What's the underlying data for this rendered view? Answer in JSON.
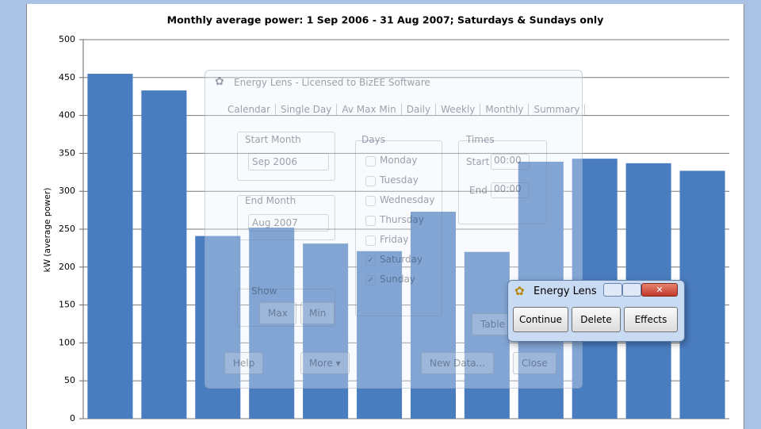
{
  "chart_data": {
    "type": "bar",
    "title": "Monthly average power: 1 Sep 2006 - 31 Aug 2007; Saturdays & Sundays only",
    "y_label": "kW (average power)",
    "categories": [
      null,
      null,
      null,
      null,
      null,
      null,
      null,
      null,
      null,
      null,
      null,
      null
    ],
    "values": [
      455,
      433,
      241,
      252,
      231,
      221,
      273,
      220,
      339,
      343,
      337,
      327
    ],
    "color": "#4a7dc0",
    "ylim": [
      0,
      500
    ],
    "yticks": [
      0,
      50,
      100,
      150,
      200,
      250,
      300,
      350,
      400,
      450,
      500
    ],
    "grid": true
  },
  "faded_dialog": {
    "title": "Energy Lens - Licensed to BizEE Software",
    "tabs": [
      "Calendar",
      "Single Day",
      "Av Max Min",
      "Daily",
      "Weekly",
      "Monthly",
      "Summary"
    ],
    "start_month_label": "Start Month",
    "start_month": "Sep 2006",
    "end_month_label": "End Month",
    "end_month": "Aug 2007",
    "days_label": "Days",
    "days": [
      {
        "label": "Monday",
        "checked": false
      },
      {
        "label": "Tuesday",
        "checked": false
      },
      {
        "label": "Wednesday",
        "checked": false
      },
      {
        "label": "Thursday",
        "checked": false
      },
      {
        "label": "Friday",
        "checked": false
      },
      {
        "label": "Saturday",
        "checked": true
      },
      {
        "label": "Sunday",
        "checked": true
      }
    ],
    "times_label": "Times",
    "start_label": "Start",
    "start_time": "00:00",
    "end_label": "End",
    "end_time": "00:00",
    "show_label": "Show",
    "buttons": [
      "Max",
      "Min",
      "Table",
      "Help",
      "More ▾",
      "New Data...",
      "Close"
    ]
  },
  "popup": {
    "title": "Energy Lens",
    "buttons": [
      "Continue",
      "Delete",
      "Effects"
    ]
  }
}
